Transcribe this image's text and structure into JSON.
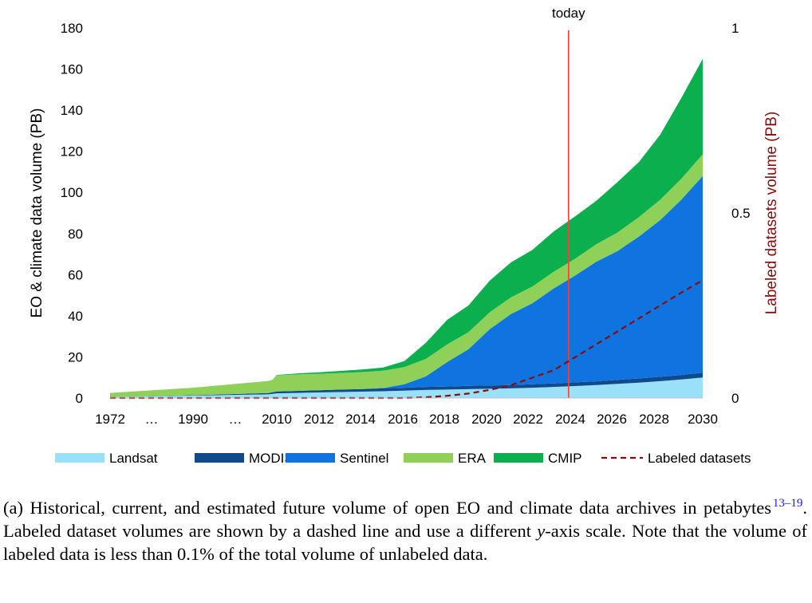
{
  "chart_data": {
    "type": "area",
    "stacked": true,
    "x_ticks": [
      "1972",
      "…",
      "1990",
      "…",
      "2010",
      "2012",
      "2014",
      "2016",
      "2018",
      "2020",
      "2022",
      "2024",
      "2026",
      "2028",
      "2030"
    ],
    "ylabel": "EO & climate data volume (PB)",
    "ylabel_right": "Labeled datasets volume (PB)",
    "ylim": [
      0,
      180
    ],
    "yticks": [
      "0",
      "20",
      "40",
      "60",
      "80",
      "100",
      "120",
      "140",
      "160",
      "180"
    ],
    "ylim_right": [
      0,
      1
    ],
    "yticks_right": [
      "0",
      "0.5",
      "1"
    ],
    "annotation": "today",
    "today_x": 2023.7,
    "x": [
      "1972",
      "1990",
      "2008",
      "2009",
      "2010",
      "2011",
      "2012",
      "2013",
      "2014",
      "2015",
      "2016",
      "2017",
      "2018",
      "2019",
      "2020",
      "2021",
      "2022",
      "2023",
      "2024",
      "2025",
      "2026",
      "2027",
      "2028",
      "2029",
      "2030"
    ],
    "series": [
      {
        "name": "Landsat",
        "color": "#99e0f8",
        "values": [
          0.5,
          1.2,
          1.8,
          2.0,
          2.3,
          2.5,
          2.7,
          2.9,
          3.1,
          3.3,
          3.6,
          3.9,
          4.1,
          4.3,
          4.5,
          4.7,
          5.0,
          5.4,
          5.8,
          6.3,
          6.9,
          7.5,
          8.2,
          9.0,
          10.0
        ]
      },
      {
        "name": "MODIS",
        "color": "#104a8c",
        "values": [
          0.0,
          0.2,
          0.6,
          0.8,
          0.9,
          1.0,
          1.1,
          1.2,
          1.3,
          1.4,
          1.4,
          1.5,
          1.5,
          1.6,
          1.6,
          1.6,
          1.7,
          1.7,
          1.8,
          1.8,
          1.9,
          2.0,
          2.1,
          2.2,
          2.3
        ]
      },
      {
        "name": "Sentinel",
        "color": "#0f74e0",
        "values": [
          0.0,
          0.0,
          0.0,
          0.0,
          0.0,
          0.0,
          0.0,
          0.0,
          0.0,
          0.2,
          1.7,
          5.1,
          11.9,
          17.8,
          27.4,
          34.6,
          39.4,
          46.2,
          51.9,
          58.2,
          62.7,
          69.0,
          76.2,
          85.3,
          95.7
        ]
      },
      {
        "name": "ERA",
        "color": "#8fd158",
        "values": [
          2.0,
          3.6,
          5.9,
          6.1,
          7.8,
          8.0,
          8.0,
          8.1,
          8.2,
          8.4,
          8.4,
          8.5,
          8.6,
          8.3,
          8.2,
          8.1,
          8.1,
          8.1,
          8.2,
          8.5,
          9.0,
          9.5,
          9.9,
          10.2,
          10.5
        ]
      },
      {
        "name": "CMIP",
        "color": "#0caf4e",
        "values": [
          0.0,
          0.0,
          0.0,
          0.0,
          0.2,
          0.5,
          0.7,
          1.0,
          1.3,
          1.5,
          2.9,
          7.9,
          11.9,
          13.0,
          15.4,
          17.0,
          17.8,
          19.6,
          20.6,
          21.1,
          24.5,
          26.7,
          31.6,
          39.3,
          46.5
        ]
      }
    ],
    "line_series": {
      "name": "Labeled datasets",
      "color": "#8b0a0a",
      "axis": "right",
      "x": [
        "1972",
        "1990",
        "2010",
        "2012",
        "2014",
        "2016",
        "2017",
        "2018",
        "2019",
        "2020",
        "2021",
        "2022",
        "2023",
        "2024",
        "2025",
        "2026",
        "2027",
        "2028",
        "2029",
        "2030"
      ],
      "values": [
        0.0,
        0.0,
        0.0,
        0.0,
        0.0,
        0.0,
        0.002,
        0.006,
        0.012,
        0.022,
        0.035,
        0.055,
        0.075,
        0.11,
        0.145,
        0.18,
        0.215,
        0.25,
        0.285,
        0.318
      ]
    },
    "legend": [
      "Landsat",
      "MODIS",
      "Sentinel",
      "ERA",
      "CMIP",
      "Labeled datasets"
    ],
    "legend_position": "bottom",
    "grid": false
  },
  "caption": {
    "prefix": "(a) Historical, current, and estimated future volume of open EO and climate data archives in petabytes",
    "citation": "13–19",
    "rest": ". Labeled dataset volumes are shown by a dashed line and use a different ",
    "y_symbol": "y",
    "suffix": "-axis scale. Note that the volume of labeled data is less than 0.1% of the total volume of unlabeled data."
  }
}
